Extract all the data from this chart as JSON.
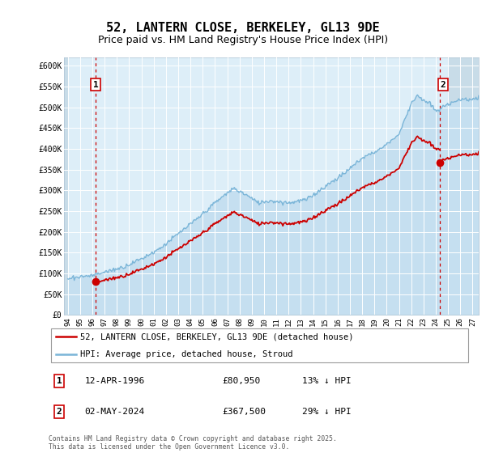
{
  "title": "52, LANTERN CLOSE, BERKELEY, GL13 9DE",
  "subtitle": "Price paid vs. HM Land Registry's House Price Index (HPI)",
  "xlim_start": 1993.7,
  "xlim_end": 2027.5,
  "ylim": [
    0,
    620000
  ],
  "yticks": [
    0,
    50000,
    100000,
    150000,
    200000,
    250000,
    300000,
    350000,
    400000,
    450000,
    500000,
    550000,
    600000
  ],
  "ytick_labels": [
    "£0",
    "£50K",
    "£100K",
    "£150K",
    "£200K",
    "£250K",
    "£300K",
    "£350K",
    "£400K",
    "£450K",
    "£500K",
    "£550K",
    "£600K"
  ],
  "xticks": [
    1994,
    1995,
    1996,
    1997,
    1998,
    1999,
    2000,
    2001,
    2002,
    2003,
    2004,
    2005,
    2006,
    2007,
    2008,
    2009,
    2010,
    2011,
    2012,
    2013,
    2014,
    2015,
    2016,
    2017,
    2018,
    2019,
    2020,
    2021,
    2022,
    2023,
    2024,
    2025,
    2026,
    2027
  ],
  "xtick_labels": [
    "94",
    "95",
    "96",
    "97",
    "98",
    "99",
    "00",
    "01",
    "02",
    "03",
    "04",
    "05",
    "06",
    "07",
    "08",
    "09",
    "10",
    "11",
    "12",
    "13",
    "14",
    "15",
    "16",
    "17",
    "18",
    "19",
    "20",
    "21",
    "22",
    "23",
    "24",
    "25",
    "26",
    "27"
  ],
  "sale1_x": 1996.28,
  "sale1_y": 80950,
  "sale1_label": "1",
  "sale1_date": "12-APR-1996",
  "sale1_price": "£80,950",
  "sale1_hpi": "13% ↓ HPI",
  "sale2_x": 2024.34,
  "sale2_y": 367500,
  "sale2_label": "2",
  "sale2_date": "02-MAY-2024",
  "sale2_price": "£367,500",
  "sale2_hpi": "29% ↓ HPI",
  "hpi_color": "#7ab5d8",
  "hpi_fill_color": "#c5dff0",
  "sale_color": "#cc0000",
  "hpi_line_label": "HPI: Average price, detached house, Stroud",
  "sale_line_label": "52, LANTERN CLOSE, BERKELEY, GL13 9DE (detached house)",
  "footer": "Contains HM Land Registry data © Crown copyright and database right 2025.\nThis data is licensed under the Open Government Licence v3.0.",
  "plot_bg_color": "#ddeef8",
  "grid_color": "#ffffff",
  "hatch_bg_color": "#c8dce8",
  "title_fontsize": 11,
  "subtitle_fontsize": 9
}
